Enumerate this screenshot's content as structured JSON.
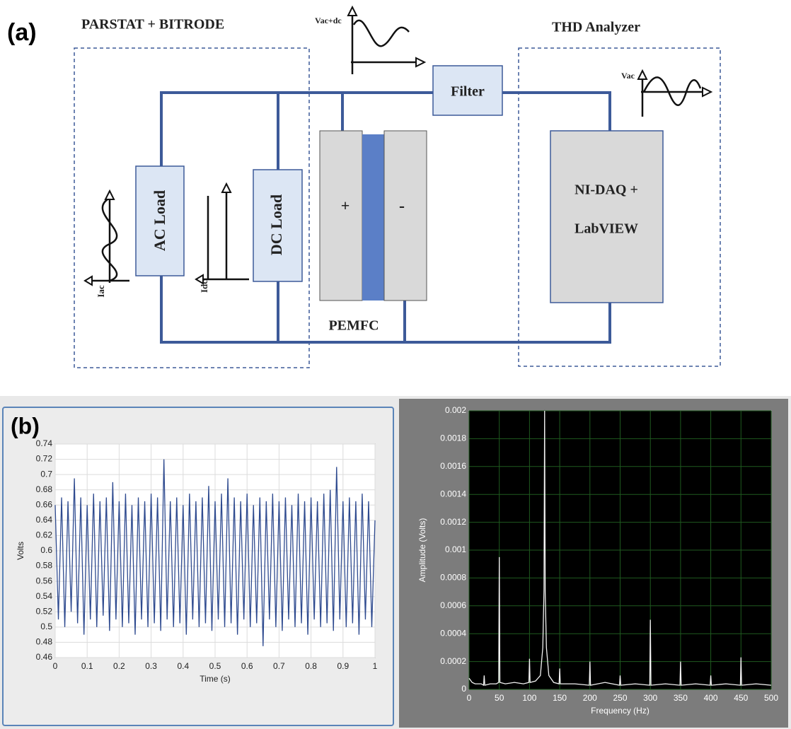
{
  "diagram": {
    "panel_label": "(a)",
    "groups": [
      {
        "label": "PARSTAT + BITRODE"
      },
      {
        "label": "THD Analyzer"
      }
    ],
    "nodes": [
      {
        "label": "AC Load"
      },
      {
        "label": "DC Load"
      },
      {
        "label": "Filter"
      },
      {
        "label": "NI-DAQ +",
        "label2": "LabVIEW"
      },
      {
        "label": "PEMFC",
        "plus": "+",
        "minus": "-"
      }
    ],
    "signals": [
      {
        "label": "Iac"
      },
      {
        "label": "Idc"
      },
      {
        "label": "Vac+dc"
      },
      {
        "label": "Vac"
      }
    ]
  },
  "panel_b_label": "(b)",
  "chart_data": [
    {
      "type": "line",
      "xlabel": "Time (s)",
      "ylabel": "Volts",
      "color": "#2e4a8f",
      "grid": true,
      "xlim": [
        0,
        1
      ],
      "xticks": [
        0,
        0.1,
        0.2,
        0.3,
        0.4,
        0.5,
        0.6,
        0.7,
        0.8,
        0.9,
        1
      ],
      "ylim": [
        0.46,
        0.74
      ],
      "yticks": [
        0.46,
        0.48,
        0.5,
        0.52,
        0.54,
        0.56,
        0.58,
        0.6,
        0.62,
        0.64,
        0.66,
        0.68,
        0.7,
        0.72,
        0.74
      ],
      "x": [
        0,
        0.01,
        0.02,
        0.03,
        0.04,
        0.05,
        0.06,
        0.07,
        0.08,
        0.09,
        0.1,
        0.11,
        0.12,
        0.13,
        0.14,
        0.15,
        0.16,
        0.17,
        0.18,
        0.19,
        0.2,
        0.21,
        0.22,
        0.23,
        0.24,
        0.25,
        0.26,
        0.27,
        0.28,
        0.29,
        0.3,
        0.31,
        0.32,
        0.33,
        0.34,
        0.35,
        0.36,
        0.37,
        0.38,
        0.39,
        0.4,
        0.41,
        0.42,
        0.43,
        0.44,
        0.45,
        0.46,
        0.47,
        0.48,
        0.49,
        0.5,
        0.51,
        0.52,
        0.53,
        0.54,
        0.55,
        0.56,
        0.57,
        0.58,
        0.59,
        0.6,
        0.61,
        0.62,
        0.63,
        0.64,
        0.65,
        0.66,
        0.67,
        0.68,
        0.69,
        0.7,
        0.71,
        0.72,
        0.73,
        0.74,
        0.75,
        0.76,
        0.77,
        0.78,
        0.79,
        0.8,
        0.81,
        0.82,
        0.83,
        0.84,
        0.85,
        0.86,
        0.87,
        0.88,
        0.89,
        0.9,
        0.91,
        0.92,
        0.93,
        0.94,
        0.95,
        0.96,
        0.97,
        0.98,
        0.99,
        1
      ],
      "values": [
        0.66,
        0.51,
        0.67,
        0.5,
        0.665,
        0.52,
        0.695,
        0.505,
        0.67,
        0.49,
        0.66,
        0.51,
        0.675,
        0.5,
        0.665,
        0.515,
        0.67,
        0.495,
        0.69,
        0.51,
        0.665,
        0.5,
        0.675,
        0.505,
        0.66,
        0.49,
        0.67,
        0.51,
        0.665,
        0.5,
        0.675,
        0.505,
        0.67,
        0.495,
        0.72,
        0.51,
        0.665,
        0.5,
        0.67,
        0.505,
        0.66,
        0.49,
        0.675,
        0.51,
        0.665,
        0.5,
        0.67,
        0.505,
        0.685,
        0.495,
        0.665,
        0.51,
        0.675,
        0.5,
        0.695,
        0.505,
        0.67,
        0.49,
        0.665,
        0.51,
        0.675,
        0.5,
        0.66,
        0.505,
        0.67,
        0.475,
        0.665,
        0.51,
        0.675,
        0.5,
        0.665,
        0.495,
        0.67,
        0.51,
        0.66,
        0.5,
        0.675,
        0.505,
        0.665,
        0.49,
        0.67,
        0.51,
        0.665,
        0.5,
        0.675,
        0.505,
        0.68,
        0.495,
        0.71,
        0.51,
        0.665,
        0.5,
        0.67,
        0.505,
        0.665,
        0.49,
        0.675,
        0.51,
        0.665,
        0.5,
        0.64
      ]
    },
    {
      "type": "line",
      "xlabel": "Frequency (Hz)",
      "ylabel": "Amplitude (Volts)",
      "color": "#f2f2f2",
      "grid": true,
      "xlim": [
        0,
        500
      ],
      "xticks": [
        0,
        50,
        100,
        150,
        200,
        250,
        300,
        350,
        400,
        450,
        500
      ],
      "ylim": [
        0,
        0.002
      ],
      "yticks": [
        0,
        0.0002,
        0.0004,
        0.0006,
        0.0008,
        0.001,
        0.0012,
        0.0014,
        0.0016,
        0.0018,
        0.002
      ],
      "x": [
        0,
        5,
        10,
        20,
        24,
        25,
        26,
        35,
        45,
        49,
        50,
        51,
        60,
        75,
        90,
        99,
        100,
        101,
        110,
        118,
        122,
        124,
        125,
        126,
        128,
        132,
        140,
        149,
        150,
        151,
        175,
        199,
        200,
        201,
        225,
        249,
        250,
        251,
        275,
        299,
        300,
        301,
        325,
        349,
        350,
        351,
        375,
        399,
        400,
        401,
        425,
        449,
        450,
        451,
        475,
        500
      ],
      "values": [
        8e-05,
        5e-05,
        4e-05,
        4e-05,
        3e-05,
        0.0001,
        3e-05,
        4e-05,
        4e-05,
        5e-05,
        0.00095,
        5e-05,
        4e-05,
        5e-05,
        4e-05,
        5e-05,
        0.00022,
        5e-05,
        6e-05,
        0.0001,
        0.0003,
        0.00072,
        0.002,
        0.0007,
        0.0003,
        0.0001,
        5e-05,
        4e-05,
        0.00015,
        4e-05,
        4e-05,
        3e-05,
        0.0002,
        3e-05,
        5e-05,
        3e-05,
        0.0001,
        3e-05,
        4e-05,
        3e-05,
        0.0005,
        3e-05,
        4e-05,
        3e-05,
        0.0002,
        3e-05,
        4e-05,
        3e-05,
        0.0001,
        3e-05,
        4e-05,
        3e-05,
        0.00023,
        3e-05,
        4e-05,
        3e-05
      ]
    }
  ]
}
